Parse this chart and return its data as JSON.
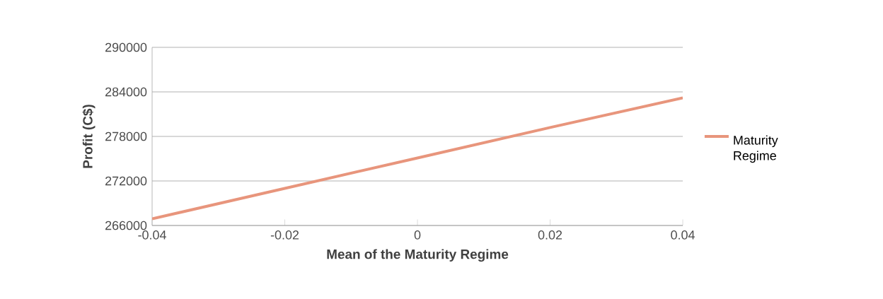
{
  "chart_data": {
    "type": "line",
    "xlabel": "Mean of the Maturity Regime",
    "ylabel": "Profit (C$)",
    "x": [
      -0.04,
      -0.02,
      0,
      0.02,
      0.04
    ],
    "series": [
      {
        "name": "Maturity Regime",
        "color": "#e8957c",
        "values": [
          266900,
          271000,
          275100,
          279200,
          283200
        ]
      }
    ],
    "xlim": [
      -0.04,
      0.04
    ],
    "ylim": [
      266000,
      290000
    ],
    "xticks": [
      -0.04,
      -0.02,
      0,
      0.02,
      0.04
    ],
    "yticks": [
      266000,
      272000,
      278000,
      284000,
      290000
    ],
    "grid": "y",
    "legend": "right",
    "marker": "none",
    "line_style": "solid"
  }
}
